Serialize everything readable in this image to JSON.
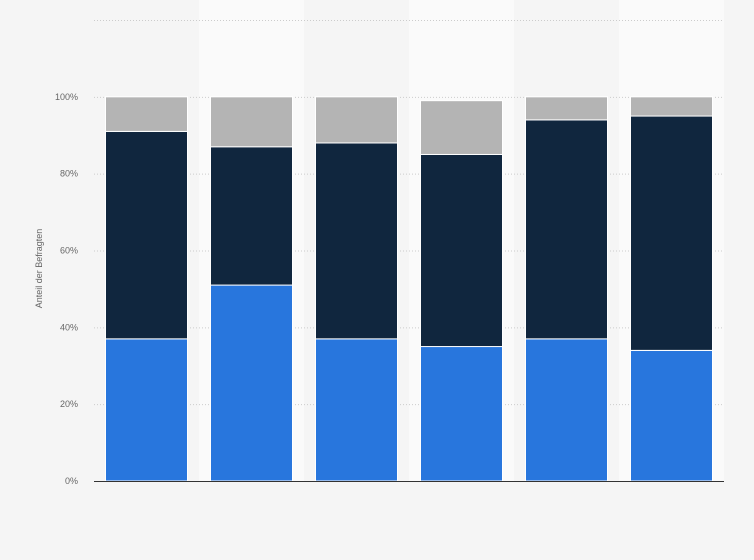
{
  "chart_data": {
    "type": "bar",
    "stacked": true,
    "title": "",
    "xlabel": "",
    "ylabel": "Anteil der Befragten",
    "ylim": [
      0,
      120
    ],
    "yticks": [
      0,
      20,
      40,
      60,
      80,
      100
    ],
    "ytick_labels": [
      "0%",
      "20%",
      "40%",
      "60%",
      "80%",
      "100%"
    ],
    "grid": true,
    "legend": "none",
    "categories": [
      "",
      "",
      "",
      "",
      "",
      ""
    ],
    "series": [
      {
        "color": "#2876dd",
        "values": [
          37,
          51,
          37,
          35,
          37,
          34
        ]
      },
      {
        "color": "#10263e",
        "values": [
          54,
          36,
          51,
          50,
          57,
          61
        ]
      },
      {
        "color": "#b4b4b4",
        "values": [
          9,
          13,
          12,
          14,
          6,
          5
        ]
      }
    ]
  }
}
